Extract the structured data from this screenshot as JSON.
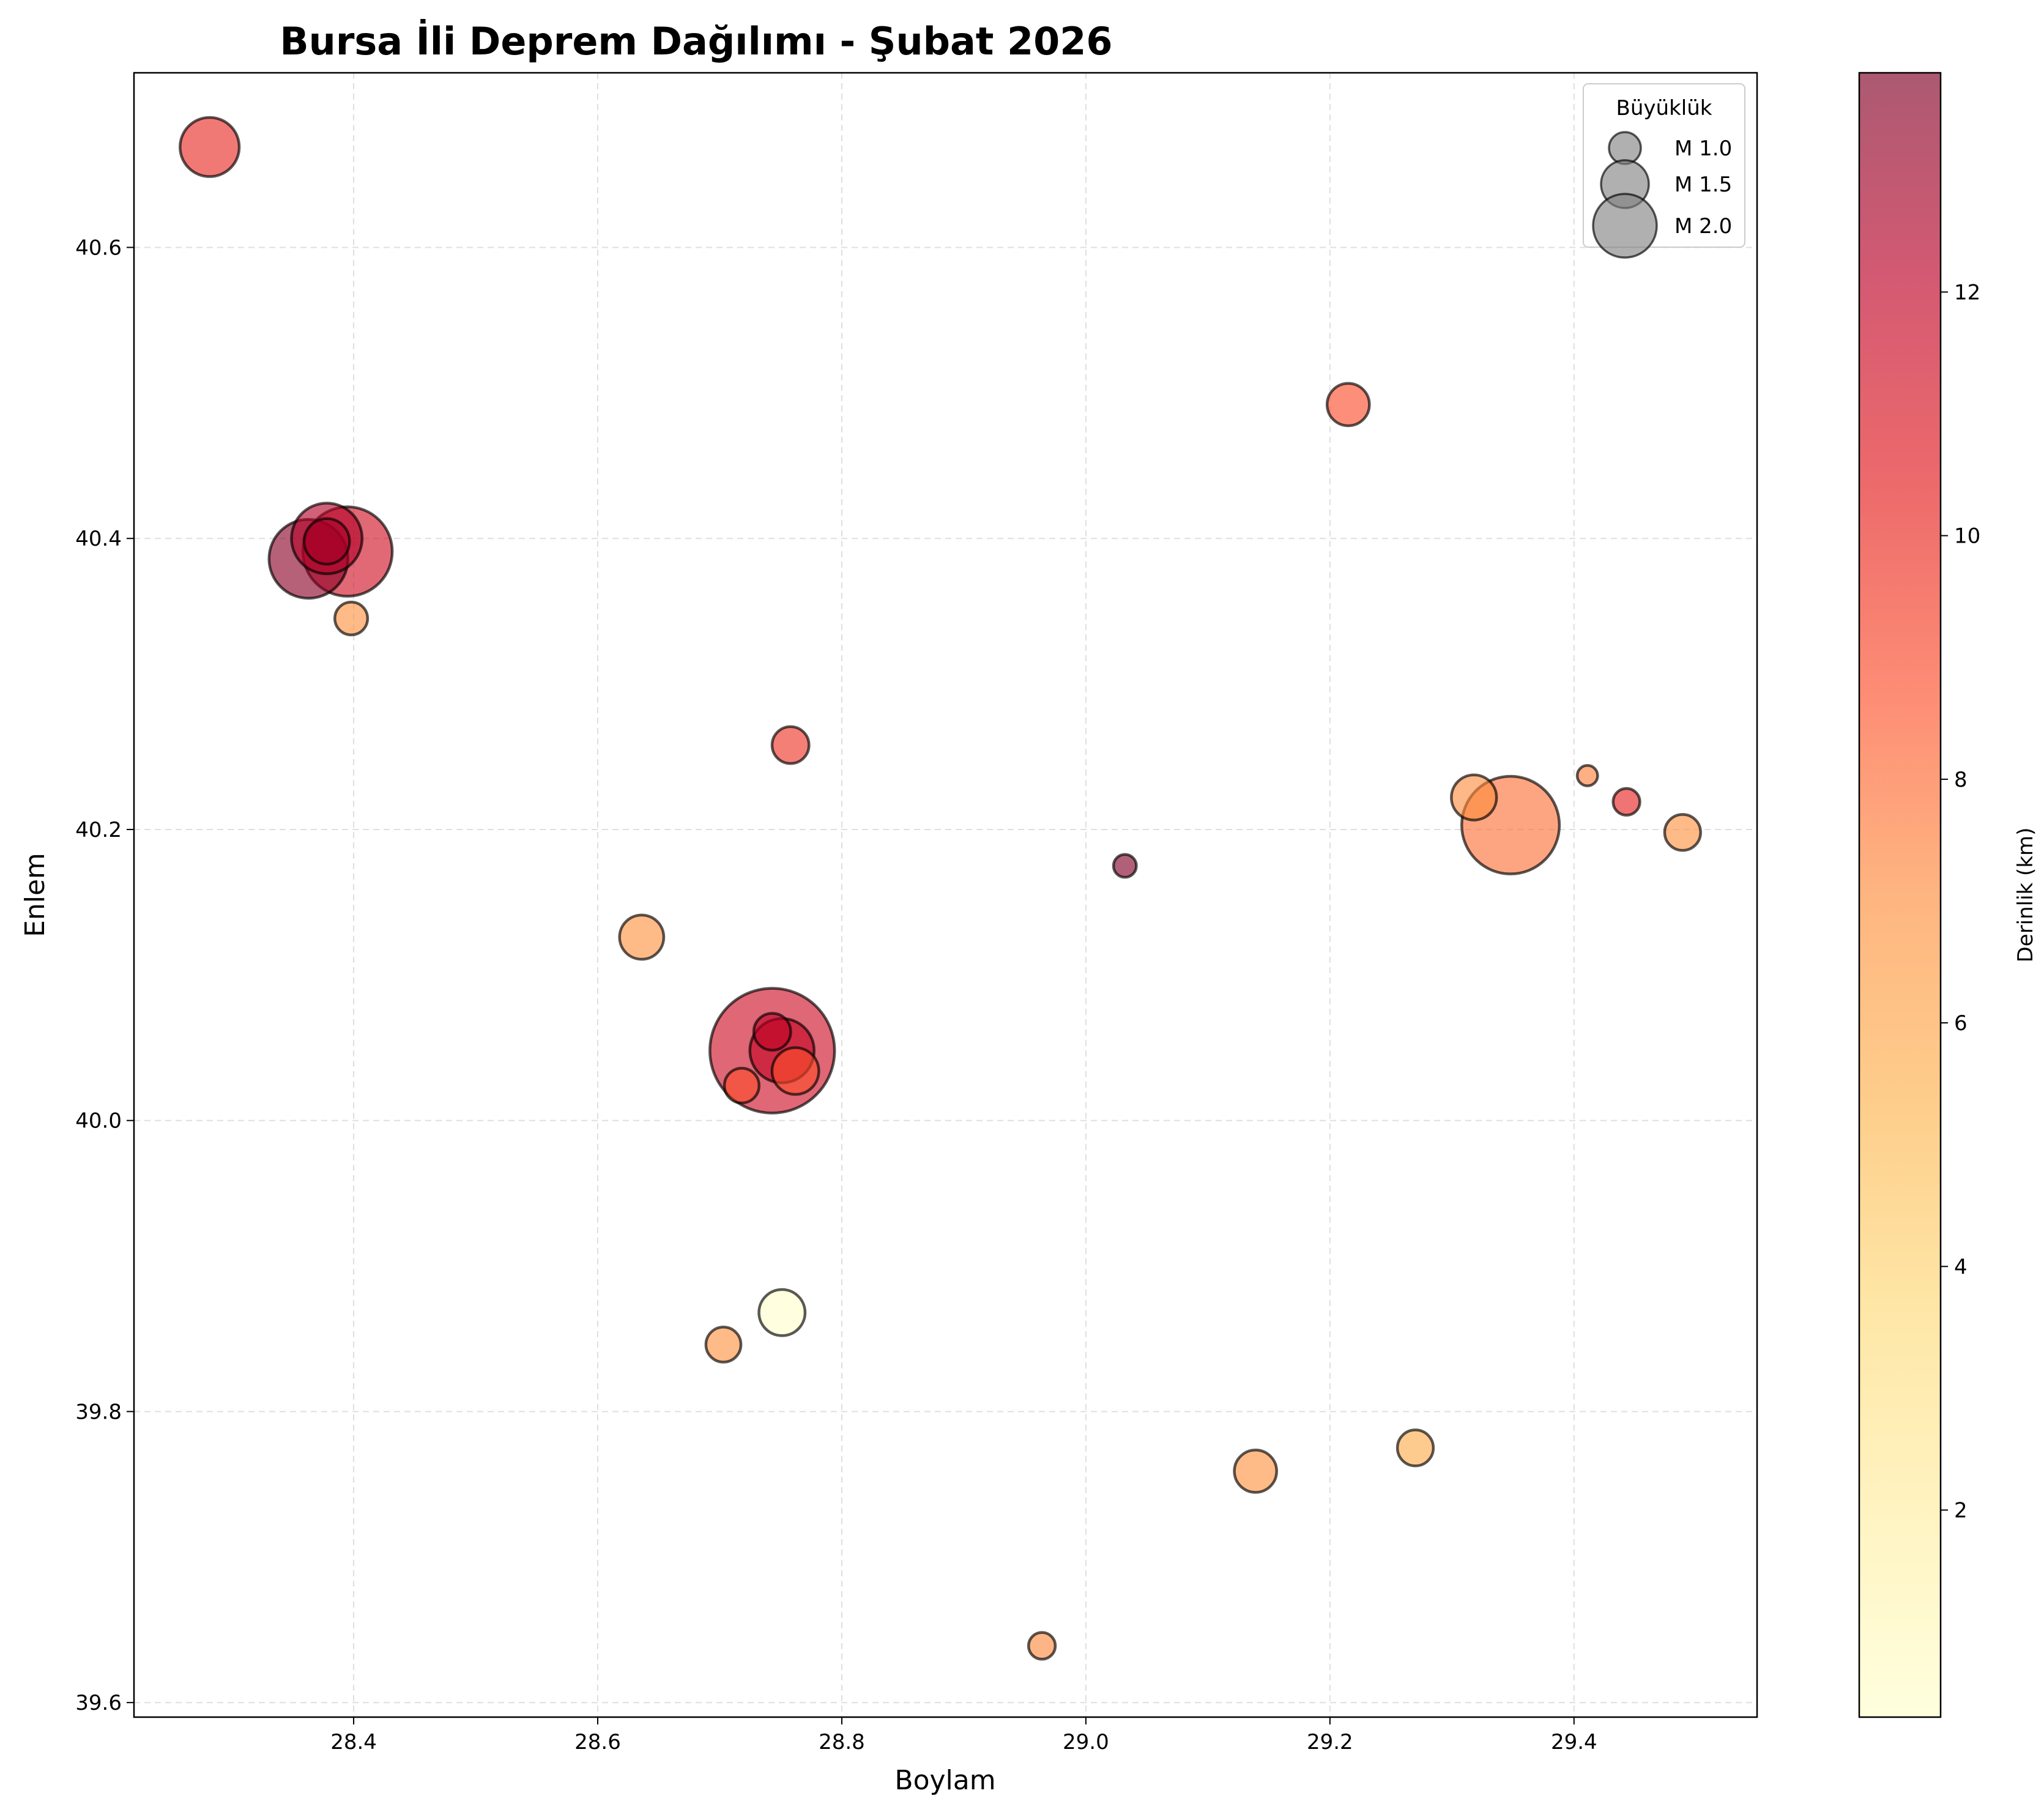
{
  "chart_data": {
    "type": "scatter",
    "title": "Bursa İli Deprem Dağılımı - Şubat 2026",
    "xlabel": "Boylam",
    "ylabel": "Enlem",
    "xlim": [
      28.22,
      29.55
    ],
    "ylim": [
      39.59,
      40.72
    ],
    "xticks": [
      "28.4",
      "28.6",
      "28.8",
      "29.0",
      "29.2",
      "29.4"
    ],
    "yticks": [
      "39.6",
      "39.8",
      "40.0",
      "40.2",
      "40.4",
      "40.6"
    ],
    "grid": true,
    "legend": {
      "title": "Büyüklük",
      "placement": "top-right",
      "entries": [
        {
          "label": "M 1.0",
          "magnitude": 1.0
        },
        {
          "label": "M 1.5",
          "magnitude": 1.5
        },
        {
          "label": "M 2.0",
          "magnitude": 2.0
        }
      ]
    },
    "colorbar": {
      "label": "Derinlik (km)",
      "range": [
        0.3,
        13.8
      ],
      "ticks": [
        "2",
        "4",
        "6",
        "8",
        "10",
        "12"
      ],
      "colormap": "YlOrRd",
      "stops": [
        "#ffffcc",
        "#ffeda0",
        "#fed976",
        "#feb24c",
        "#fd8d3c",
        "#fc4e2a",
        "#e31a1c",
        "#bd0026",
        "#800026"
      ]
    },
    "points": [
      {
        "lon": 28.282,
        "lat": 40.669,
        "magnitude": 1.86,
        "depth": 10.0
      },
      {
        "lon": 28.395,
        "lat": 40.391,
        "magnitude": 2.81,
        "depth": 11.3
      },
      {
        "lon": 28.378,
        "lat": 40.4,
        "magnitude": 2.22,
        "depth": 12.4
      },
      {
        "lon": 28.363,
        "lat": 40.386,
        "magnitude": 2.48,
        "depth": 13.5
      },
      {
        "lon": 28.378,
        "lat": 40.398,
        "magnitude": 1.43,
        "depth": 12.8
      },
      {
        "lon": 28.398,
        "lat": 40.345,
        "magnitude": 1.03,
        "depth": 6.9
      },
      {
        "lon": 28.758,
        "lat": 40.258,
        "magnitude": 1.16,
        "depth": 9.7
      },
      {
        "lon": 28.636,
        "lat": 40.126,
        "magnitude": 1.39,
        "depth": 6.9
      },
      {
        "lon": 28.743,
        "lat": 40.048,
        "magnitude": 3.92,
        "depth": 11.5
      },
      {
        "lon": 28.751,
        "lat": 40.048,
        "magnitude": 2.02,
        "depth": 11.8
      },
      {
        "lon": 28.743,
        "lat": 40.061,
        "magnitude": 1.16,
        "depth": 12.0
      },
      {
        "lon": 28.762,
        "lat": 40.034,
        "magnitude": 1.47,
        "depth": 8.8
      },
      {
        "lon": 28.718,
        "lat": 40.024,
        "magnitude": 1.09,
        "depth": 8.8
      },
      {
        "lon": 28.751,
        "lat": 39.868,
        "magnitude": 1.45,
        "depth": 0.3
      },
      {
        "lon": 28.703,
        "lat": 39.846,
        "magnitude": 1.1,
        "depth": 6.9
      },
      {
        "lon": 29.032,
        "lat": 40.175,
        "magnitude": 0.72,
        "depth": 13.8
      },
      {
        "lon": 29.215,
        "lat": 40.492,
        "magnitude": 1.33,
        "depth": 8.9
      },
      {
        "lon": 29.318,
        "lat": 40.222,
        "magnitude": 1.42,
        "depth": 7.1
      },
      {
        "lon": 29.348,
        "lat": 40.203,
        "magnitude": 3.07,
        "depth": 7.9
      },
      {
        "lon": 29.411,
        "lat": 40.237,
        "magnitude": 0.64,
        "depth": 7.4
      },
      {
        "lon": 29.443,
        "lat": 40.219,
        "magnitude": 0.84,
        "depth": 10.3
      },
      {
        "lon": 29.489,
        "lat": 40.198,
        "magnitude": 1.13,
        "depth": 6.9
      },
      {
        "lon": 29.139,
        "lat": 39.759,
        "magnitude": 1.33,
        "depth": 6.9
      },
      {
        "lon": 29.27,
        "lat": 39.775,
        "magnitude": 1.13,
        "depth": 5.7
      },
      {
        "lon": 28.964,
        "lat": 39.639,
        "magnitude": 0.84,
        "depth": 7.2
      }
    ]
  }
}
